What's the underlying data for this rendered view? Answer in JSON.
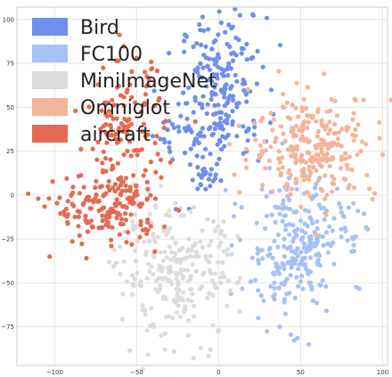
{
  "chart_data": {
    "type": "scatter",
    "xlim": [
      -123,
      103
    ],
    "ylim": [
      -97,
      107
    ],
    "xticks": [
      -100,
      -50,
      0,
      50,
      100
    ],
    "yticks": [
      100,
      75,
      50,
      25,
      0,
      -25,
      -50,
      -75
    ],
    "grid": true,
    "legend": {
      "placement": "top-left"
    },
    "series": [
      {
        "name": "Bird",
        "color": "#6e8fee",
        "clusters": [
          {
            "cx": 3,
            "cy": 62,
            "sx": 13,
            "sy": 20,
            "n": 190
          },
          {
            "cx": -18,
            "cy": 35,
            "sx": 11,
            "sy": 9,
            "n": 45
          },
          {
            "cx": -8,
            "cy": 10,
            "sx": 4,
            "sy": 4,
            "n": 20
          }
        ],
        "points": [
          [
            10,
            106
          ],
          [
            -18,
            -8
          ],
          [
            -26,
            -8
          ],
          [
            -11,
            6
          ],
          [
            -6,
            9
          ]
        ]
      },
      {
        "name": "FC100",
        "color": "#a7c1f5",
        "clusters": [
          {
            "cx": 45,
            "cy": -30,
            "sx": 15,
            "sy": 20,
            "n": 230
          },
          {
            "cx": 70,
            "cy": -20,
            "sx": 8,
            "sy": 8,
            "n": 25
          }
        ],
        "points": [
          [
            10,
            -5
          ],
          [
            14,
            -7
          ],
          [
            55,
            -85
          ],
          [
            82,
            -25
          ]
        ]
      },
      {
        "name": "MiniImageNet",
        "color": "#dcdcdc",
        "clusters": [
          {
            "cx": -25,
            "cy": -45,
            "sx": 18,
            "sy": 18,
            "n": 250
          }
        ],
        "points": [
          [
            -35,
            -80
          ],
          [
            -5,
            -88
          ],
          [
            -60,
            -45
          ],
          [
            3,
            -15
          ]
        ]
      },
      {
        "name": "Omniglot",
        "color": "#f5b49a",
        "clusters": [
          {
            "cx": 58,
            "cy": 28,
            "sx": 19,
            "sy": 15,
            "n": 250
          }
        ],
        "points": [
          [
            40,
            50
          ],
          [
            68,
            48
          ],
          [
            85,
            40
          ],
          [
            100,
            23
          ]
        ]
      },
      {
        "name": "aircraft",
        "color": "#e36b53",
        "clusters": [
          {
            "cx": -68,
            "cy": -8,
            "sx": 16,
            "sy": 10,
            "n": 160
          },
          {
            "cx": -57,
            "cy": 35,
            "sx": 12,
            "sy": 20,
            "n": 130
          }
        ],
        "points": [
          [
            -103,
            -35
          ],
          [
            -110,
            -2
          ],
          [
            -50,
            78
          ],
          [
            -45,
            70
          ],
          [
            -35,
            10
          ]
        ]
      }
    ]
  }
}
